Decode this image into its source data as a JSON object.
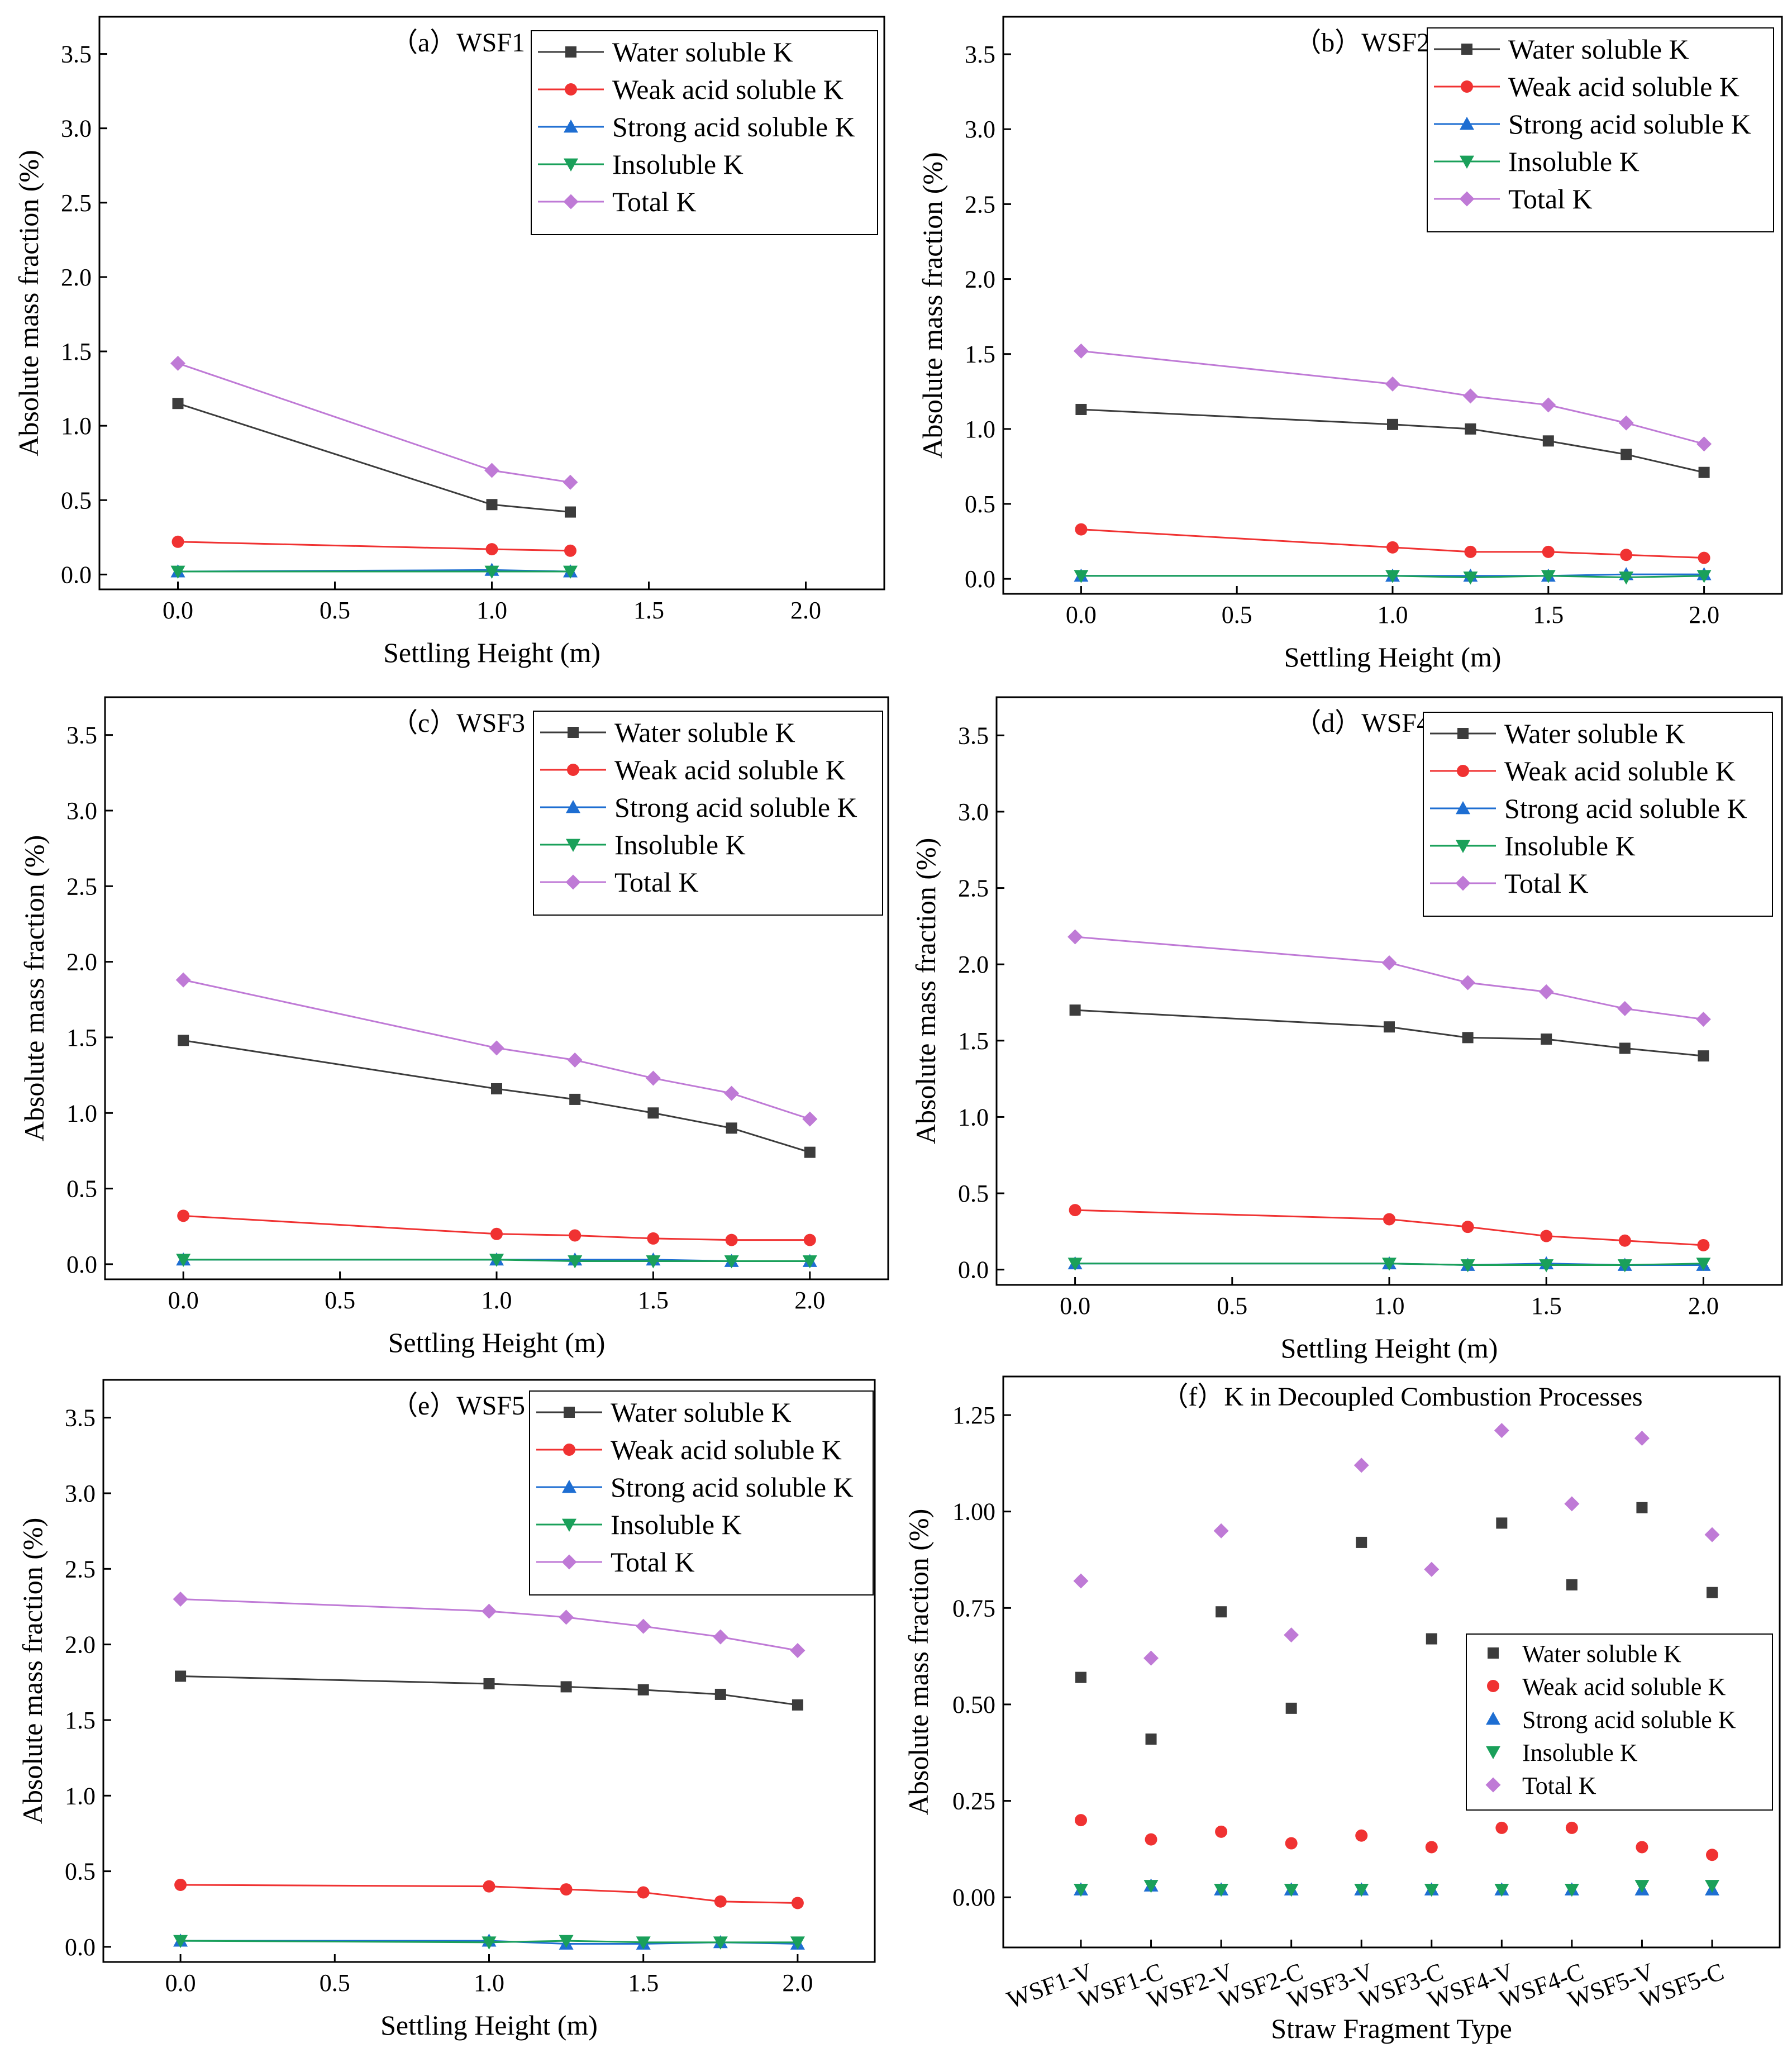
{
  "figure": {
    "x_axis_label": "Settling Height (m)",
    "y_axis_label": "Absolute mass fraction (%)",
    "x_ticks": [
      "0.0",
      "0.5",
      "1.0",
      "1.5",
      "2.0"
    ],
    "y_ticks": [
      "0.0",
      "0.5",
      "1.0",
      "1.5",
      "2.0",
      "2.5",
      "3.0",
      "3.5"
    ],
    "legend": [
      "Water soluble K",
      "Weak acid soluble K",
      "Strong acid soluble K",
      "Insoluble K",
      "Total K"
    ],
    "series_colors": [
      "#3c3c3c",
      "#f03232",
      "#1e6ed2",
      "#1aa05a",
      "#bf7ad6"
    ],
    "panel_f": {
      "title": "（f）K in Decoupled Combustion Processes",
      "x_axis_label": "Straw Fragment Type",
      "y_axis_label": "Absolute mass fraction (%)",
      "y_ticks": [
        "0.00",
        "0.25",
        "0.50",
        "0.75",
        "1.00",
        "1.25"
      ]
    }
  },
  "chart_data": [
    {
      "type": "line",
      "title": "（a）WSF1",
      "xlabel": "Settling Height (m)",
      "ylabel": "Absolute mass fraction (%)",
      "xlim": [
        -0.25,
        2.25
      ],
      "ylim": [
        -0.1,
        3.75
      ],
      "x": [
        0.0,
        1.0,
        1.25
      ],
      "series": [
        {
          "name": "Water soluble K",
          "values": [
            1.15,
            0.47,
            0.42
          ]
        },
        {
          "name": "Weak acid soluble K",
          "values": [
            0.22,
            0.17,
            0.16
          ]
        },
        {
          "name": "Strong acid soluble K",
          "values": [
            0.02,
            0.03,
            0.02
          ]
        },
        {
          "name": "Insoluble K",
          "values": [
            0.02,
            0.02,
            0.02
          ]
        },
        {
          "name": "Total K",
          "values": [
            1.42,
            0.7,
            0.62
          ]
        }
      ]
    },
    {
      "type": "line",
      "title": "（b）WSF2",
      "xlabel": "Settling Height (m)",
      "ylabel": "Absolute mass fraction (%)",
      "xlim": [
        -0.25,
        2.25
      ],
      "ylim": [
        -0.1,
        3.75
      ],
      "x": [
        0.0,
        1.0,
        1.25,
        1.5,
        1.75,
        2.0
      ],
      "series": [
        {
          "name": "Water soluble K",
          "values": [
            1.13,
            1.03,
            1.0,
            0.92,
            0.83,
            0.71
          ]
        },
        {
          "name": "Weak acid soluble K",
          "values": [
            0.33,
            0.21,
            0.18,
            0.18,
            0.16,
            0.14
          ]
        },
        {
          "name": "Strong acid soluble K",
          "values": [
            0.02,
            0.02,
            0.02,
            0.02,
            0.03,
            0.03
          ]
        },
        {
          "name": "Insoluble K",
          "values": [
            0.02,
            0.02,
            0.01,
            0.02,
            0.01,
            0.02
          ]
        },
        {
          "name": "Total K",
          "values": [
            1.52,
            1.3,
            1.22,
            1.16,
            1.04,
            0.9
          ]
        }
      ]
    },
    {
      "type": "line",
      "title": "（c）WSF3",
      "xlabel": "Settling Height (m)",
      "ylabel": "Absolute mass fraction (%)",
      "xlim": [
        -0.25,
        2.25
      ],
      "ylim": [
        -0.1,
        3.75
      ],
      "x": [
        0.0,
        1.0,
        1.25,
        1.5,
        1.75,
        2.0
      ],
      "series": [
        {
          "name": "Water soluble K",
          "values": [
            1.48,
            1.16,
            1.09,
            1.0,
            0.9,
            0.74
          ]
        },
        {
          "name": "Weak acid soluble K",
          "values": [
            0.32,
            0.2,
            0.19,
            0.17,
            0.16,
            0.16
          ]
        },
        {
          "name": "Strong acid soluble K",
          "values": [
            0.03,
            0.03,
            0.03,
            0.03,
            0.02,
            0.02
          ]
        },
        {
          "name": "Insoluble K",
          "values": [
            0.03,
            0.03,
            0.02,
            0.02,
            0.02,
            0.02
          ]
        },
        {
          "name": "Total K",
          "values": [
            1.88,
            1.43,
            1.35,
            1.23,
            1.13,
            0.96
          ]
        }
      ]
    },
    {
      "type": "line",
      "title": "（d）WSF4",
      "xlabel": "Settling Height (m)",
      "ylabel": "Absolute mass fraction (%)",
      "xlim": [
        -0.25,
        2.25
      ],
      "ylim": [
        -0.1,
        3.75
      ],
      "x": [
        0.0,
        1.0,
        1.25,
        1.5,
        1.75,
        2.0
      ],
      "series": [
        {
          "name": "Water soluble K",
          "values": [
            1.7,
            1.59,
            1.52,
            1.51,
            1.45,
            1.4
          ]
        },
        {
          "name": "Weak acid soluble K",
          "values": [
            0.39,
            0.33,
            0.28,
            0.22,
            0.19,
            0.16
          ]
        },
        {
          "name": "Strong acid soluble K",
          "values": [
            0.04,
            0.04,
            0.03,
            0.04,
            0.03,
            0.03
          ]
        },
        {
          "name": "Insoluble K",
          "values": [
            0.04,
            0.04,
            0.03,
            0.03,
            0.03,
            0.04
          ]
        },
        {
          "name": "Total K",
          "values": [
            2.18,
            2.01,
            1.88,
            1.82,
            1.71,
            1.64
          ]
        }
      ]
    },
    {
      "type": "line",
      "title": "（e）WSF5",
      "xlabel": "Settling Height (m)",
      "ylabel": "Absolute mass fraction (%)",
      "xlim": [
        -0.25,
        2.25
      ],
      "ylim": [
        -0.1,
        3.75
      ],
      "x": [
        0.0,
        1.0,
        1.25,
        1.5,
        1.75,
        2.0
      ],
      "series": [
        {
          "name": "Water soluble K",
          "values": [
            1.79,
            1.74,
            1.72,
            1.7,
            1.67,
            1.6
          ]
        },
        {
          "name": "Weak acid soluble K",
          "values": [
            0.41,
            0.4,
            0.38,
            0.36,
            0.3,
            0.29
          ]
        },
        {
          "name": "Strong acid soluble K",
          "values": [
            0.04,
            0.04,
            0.02,
            0.02,
            0.03,
            0.02
          ]
        },
        {
          "name": "Insoluble K",
          "values": [
            0.04,
            0.03,
            0.04,
            0.03,
            0.03,
            0.03
          ]
        },
        {
          "name": "Total K",
          "values": [
            2.3,
            2.22,
            2.18,
            2.12,
            2.05,
            1.96
          ]
        }
      ]
    },
    {
      "type": "scatter",
      "title": "（f）K in Decoupled Combustion Processes",
      "xlabel": "Straw Fragment Type",
      "ylabel": "Absolute mass fraction (%)",
      "ylim": [
        -0.13,
        1.35
      ],
      "legend_position": "right",
      "categories": [
        "WSF1-V",
        "WSF1-C",
        "WSF2-V",
        "WSF2-C",
        "WSF3-V",
        "WSF3-C",
        "WSF4-V",
        "WSF4-C",
        "WSF5-V",
        "WSF5-C"
      ],
      "series": [
        {
          "name": "Water soluble K",
          "values": [
            0.57,
            0.41,
            0.74,
            0.49,
            0.92,
            0.67,
            0.97,
            0.81,
            1.01,
            0.79
          ]
        },
        {
          "name": "Weak acid soluble K",
          "values": [
            0.2,
            0.15,
            0.17,
            0.14,
            0.16,
            0.13,
            0.18,
            0.18,
            0.13,
            0.11
          ]
        },
        {
          "name": "Strong acid soluble K",
          "values": [
            0.02,
            0.03,
            0.02,
            0.02,
            0.02,
            0.02,
            0.02,
            0.02,
            0.02,
            0.02
          ]
        },
        {
          "name": "Insoluble K",
          "values": [
            0.02,
            0.03,
            0.02,
            0.02,
            0.02,
            0.02,
            0.02,
            0.02,
            0.03,
            0.03
          ]
        },
        {
          "name": "Total K",
          "values": [
            0.82,
            0.62,
            0.95,
            0.68,
            1.12,
            0.85,
            1.21,
            1.02,
            1.19,
            0.94
          ]
        }
      ]
    }
  ]
}
